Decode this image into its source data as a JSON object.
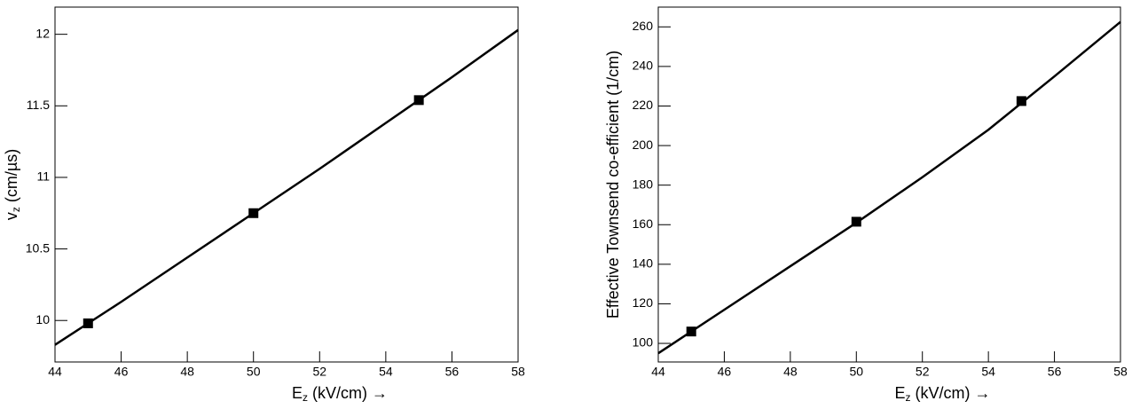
{
  "chart_data": [
    {
      "type": "line",
      "color": "#000000",
      "xlabel": {
        "main": "E",
        "sub": "z",
        "rest": " (kV/cm) →"
      },
      "ylabel": {
        "main": "v",
        "sub": "z",
        "rest": " (cm/µs)"
      },
      "xlim": [
        44,
        58
      ],
      "xticks": [
        44,
        46,
        48,
        50,
        52,
        54,
        56,
        58
      ],
      "ylim": [
        9.71,
        12.19
      ],
      "yticks": [
        10,
        10.5,
        11,
        11.5,
        12
      ],
      "curve": {
        "x": [
          44,
          46,
          48,
          50,
          52,
          54,
          56,
          58
        ],
        "values": [
          9.83,
          10.13,
          10.44,
          10.75,
          11.06,
          11.38,
          11.7,
          12.03
        ]
      },
      "points": {
        "x": [
          45,
          50,
          55
        ],
        "values": [
          9.98,
          10.75,
          11.54
        ]
      }
    },
    {
      "type": "line",
      "color": "#000000",
      "xlabel": {
        "main": "E",
        "sub": "z",
        "rest": " (kV/cm) →"
      },
      "ylabel": {
        "main": "Effective Townsend co-efficient (1/cm)"
      },
      "xlim": [
        44,
        58
      ],
      "xticks": [
        44,
        46,
        48,
        50,
        52,
        54,
        56,
        58
      ],
      "ylim": [
        90.6,
        270
      ],
      "yticks": [
        100,
        120,
        140,
        160,
        180,
        200,
        220,
        240,
        260
      ],
      "curve": {
        "x": [
          44,
          46,
          48,
          50,
          52,
          54,
          56,
          58
        ],
        "values": [
          95,
          117,
          139,
          161,
          184,
          208,
          235,
          262.5
        ]
      },
      "points": {
        "x": [
          45,
          50,
          55
        ],
        "values": [
          106,
          161.5,
          222.5
        ]
      }
    }
  ]
}
